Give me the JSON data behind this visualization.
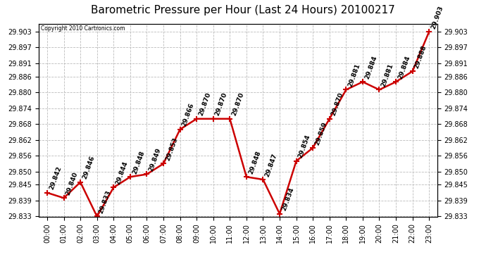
{
  "title": "Barometric Pressure per Hour (Last 24 Hours) 20100217",
  "copyright": "Copyright 2010 Cartronics.com",
  "hours": [
    "00:00",
    "01:00",
    "02:00",
    "03:00",
    "04:00",
    "05:00",
    "06:00",
    "07:00",
    "08:00",
    "09:00",
    "10:00",
    "11:00",
    "12:00",
    "13:00",
    "14:00",
    "15:00",
    "16:00",
    "17:00",
    "18:00",
    "19:00",
    "20:00",
    "21:00",
    "22:00",
    "23:00"
  ],
  "values": [
    29.842,
    29.84,
    29.846,
    29.833,
    29.844,
    29.848,
    29.849,
    29.853,
    29.866,
    29.87,
    29.87,
    29.87,
    29.848,
    29.847,
    29.834,
    29.854,
    29.859,
    29.87,
    29.881,
    29.884,
    29.881,
    29.884,
    29.888,
    29.903
  ],
  "line_color": "#cc0000",
  "marker_color": "#cc0000",
  "bg_color": "#ffffff",
  "plot_bg_color": "#ffffff",
  "grid_color": "#bbbbbb",
  "title_fontsize": 11,
  "label_fontsize": 6.5,
  "tick_fontsize": 7,
  "ylim_min": 29.833,
  "ylim_max": 29.906,
  "yticks": [
    29.833,
    29.839,
    29.845,
    29.85,
    29.856,
    29.862,
    29.868,
    29.874,
    29.88,
    29.886,
    29.891,
    29.897,
    29.903
  ]
}
